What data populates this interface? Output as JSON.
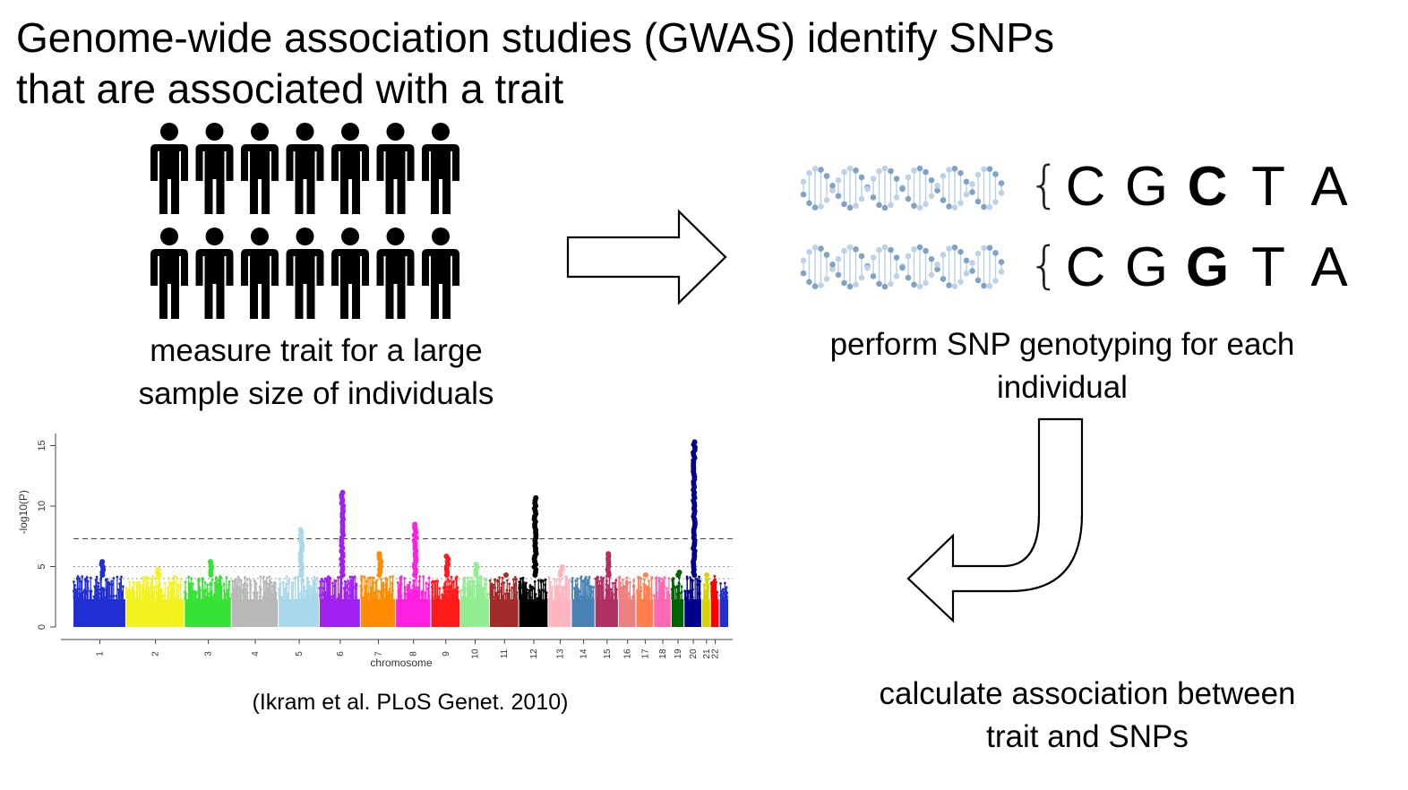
{
  "title": {
    "line1": "Genome-wide association studies (GWAS) identify SNPs",
    "line2": "that are associated with a trait"
  },
  "step1": {
    "icon": "people-icon",
    "line1": "measure trait for a large",
    "line2": "sample size of individuals"
  },
  "step2": {
    "icon": "dna-helix-icon",
    "line1": "perform SNP genotyping for each",
    "line2": "individual",
    "sequences": [
      [
        "C",
        "G",
        "C",
        "T",
        "A"
      ],
      [
        "C",
        "G",
        "G",
        "T",
        "A"
      ]
    ],
    "snp_position": 2
  },
  "step3": {
    "line1": "calculate association between",
    "line2": "trait and SNPs"
  },
  "citation": "(Ikram et al. PLoS Genet. 2010)",
  "arrows": {
    "right_arrow_icon": "right-arrow-icon",
    "curved_arrow_icon": "curved-down-left-arrow-icon"
  },
  "chart_data": {
    "type": "scatter",
    "subtype": "manhattan",
    "ylabel": "-log10(P)",
    "xlabel": "chromosome",
    "ylim": [
      0,
      16
    ],
    "yticks": [
      0,
      5,
      10,
      15
    ],
    "thresholds": {
      "genome_wide": 7.3,
      "suggestive_1": 5.0,
      "suggestive_2": 4.0
    },
    "chromosomes": [
      {
        "label": "1",
        "color": "#1f2fd1",
        "top": 5.6
      },
      {
        "label": "2",
        "color": "#f2f21e",
        "top": 4.8
      },
      {
        "label": "3",
        "color": "#36e236",
        "top": 5.6
      },
      {
        "label": "4",
        "color": "#b8b8b8",
        "top": 4.0
      },
      {
        "label": "5",
        "color": "#a8d8ea",
        "top": 8.2
      },
      {
        "label": "6",
        "color": "#a020f0",
        "top": 11.2
      },
      {
        "label": "7",
        "color": "#ff8c00",
        "top": 6.2
      },
      {
        "label": "8",
        "color": "#ff1fe0",
        "top": 8.6
      },
      {
        "label": "9",
        "color": "#ff1a1a",
        "top": 6.0
      },
      {
        "label": "10",
        "color": "#90ee90",
        "top": 5.3
      },
      {
        "label": "11",
        "color": "#a52a2a",
        "top": 4.3
      },
      {
        "label": "12",
        "color": "#000000",
        "top": 10.8
      },
      {
        "label": "13",
        "color": "#ffb6c1",
        "top": 5.1
      },
      {
        "label": "14",
        "color": "#4682b4",
        "top": 4.0
      },
      {
        "label": "15",
        "color": "#b03060",
        "top": 6.1
      },
      {
        "label": "16",
        "color": "#f08080",
        "top": 4.0
      },
      {
        "label": "17",
        "color": "#ff7f50",
        "top": 4.4
      },
      {
        "label": "18",
        "color": "#ff69b4",
        "top": 4.0
      },
      {
        "label": "19",
        "color": "#006400",
        "top": 4.6
      },
      {
        "label": "20",
        "color": "#00008b",
        "top": 15.4
      },
      {
        "label": "21",
        "color": "#d4d400",
        "top": 4.5
      },
      {
        "label": "22",
        "color": "#ff0000",
        "top": 3.8
      },
      {
        "label": "",
        "color": "#1f2fd1",
        "top": 4.0
      }
    ]
  }
}
